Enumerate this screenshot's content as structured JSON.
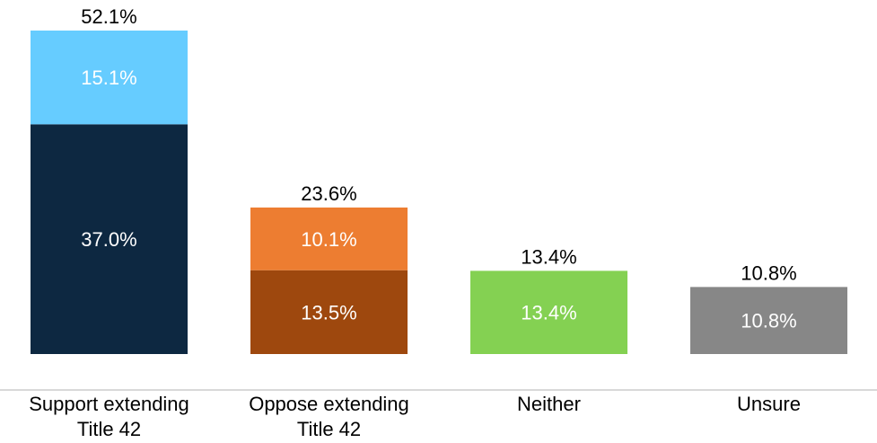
{
  "chart_data": {
    "type": "bar",
    "stacked": true,
    "categories": [
      [
        "Support extending",
        "Title 42"
      ],
      [
        "Oppose extending",
        "Title 42"
      ],
      [
        "Neither"
      ],
      [
        "Unsure"
      ]
    ],
    "bars": [
      {
        "total": 52.1,
        "total_label": "52.1%",
        "segments": [
          {
            "value": 37.0,
            "label": "37.0%",
            "color": "#0D2841"
          },
          {
            "value": 15.1,
            "label": "15.1%",
            "color": "#66CCFF"
          }
        ]
      },
      {
        "total": 23.6,
        "total_label": "23.6%",
        "segments": [
          {
            "value": 13.5,
            "label": "13.5%",
            "color": "#9E480E"
          },
          {
            "value": 10.1,
            "label": "10.1%",
            "color": "#ED7D31"
          }
        ]
      },
      {
        "total": 13.4,
        "total_label": "13.4%",
        "segments": [
          {
            "value": 13.4,
            "label": "13.4%",
            "color": "#84D152"
          }
        ]
      },
      {
        "total": 10.8,
        "total_label": "10.8%",
        "segments": [
          {
            "value": 10.8,
            "label": "10.8%",
            "color": "#878787"
          }
        ]
      }
    ],
    "ylim": [
      0,
      52.1
    ],
    "axis_color": "#D9D9D9",
    "grid": false,
    "legend": "none"
  }
}
